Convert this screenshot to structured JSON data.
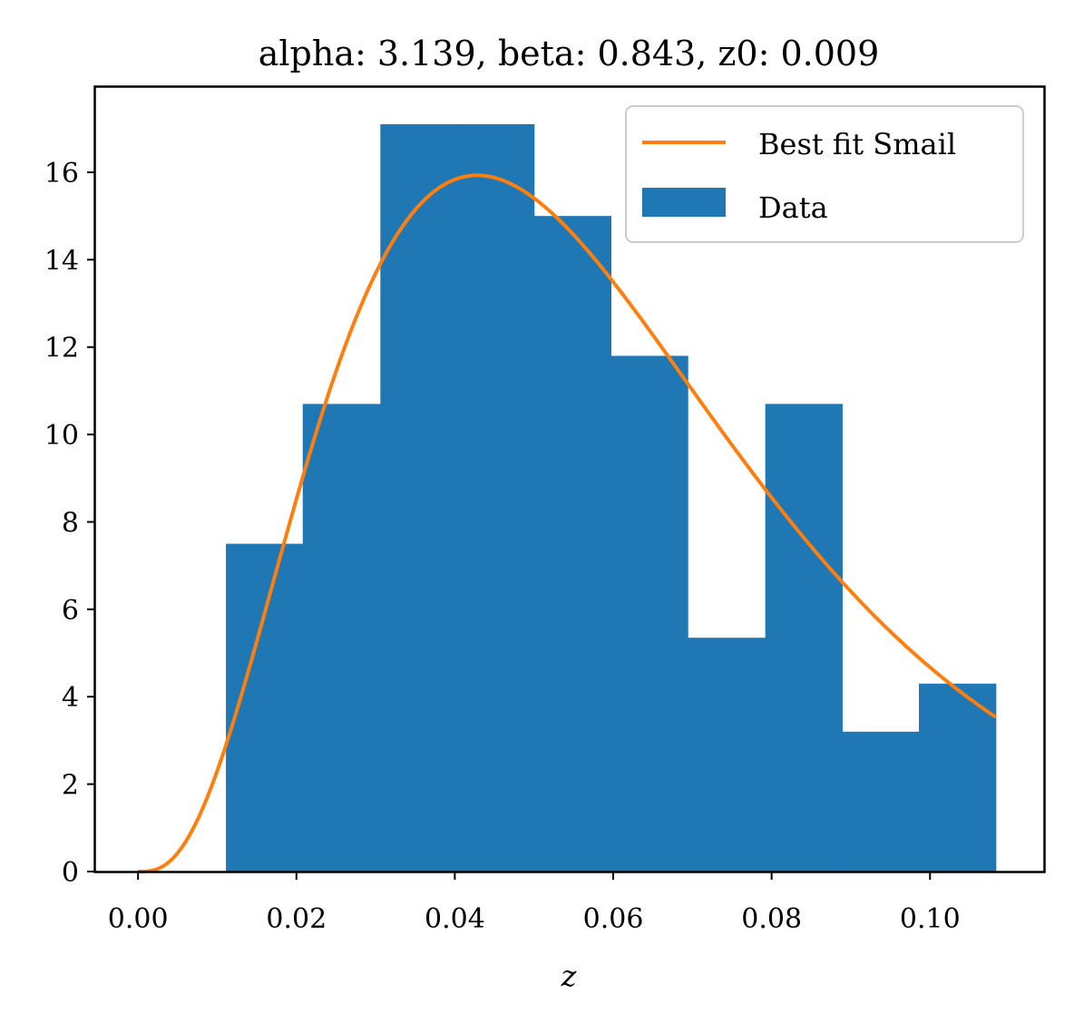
{
  "chart_data": {
    "type": "bar",
    "title": "alpha: 3.139, beta: 0.843, z0: 0.009",
    "xlabel": "z",
    "ylabel": "",
    "xlim": [
      -0.0054,
      0.1144
    ],
    "ylim": [
      0,
      17.95
    ],
    "x_ticks": [
      "0.00",
      "0.02",
      "0.04",
      "0.06",
      "0.08",
      "0.10"
    ],
    "x_tick_values": [
      0.0,
      0.02,
      0.04,
      0.06,
      0.08,
      0.1
    ],
    "y_ticks": [
      "0",
      "2",
      "4",
      "6",
      "8",
      "10",
      "12",
      "14",
      "16"
    ],
    "y_tick_values": [
      0,
      2,
      4,
      6,
      8,
      10,
      12,
      14,
      16
    ],
    "grid": false,
    "legend_position": "top-right",
    "histogram": {
      "name": "Data",
      "color": "#1f77b4",
      "bin_edges": [
        0.0111,
        0.0208,
        0.0306,
        0.0403,
        0.05,
        0.0597,
        0.0694,
        0.0792,
        0.0889,
        0.0986,
        0.1083
      ],
      "values": [
        7.5,
        10.7,
        17.1,
        17.1,
        15.0,
        11.8,
        5.35,
        10.7,
        3.2,
        4.3
      ]
    },
    "curve": {
      "name": "Best fit Smail",
      "color": "#ff7f0e",
      "alpha": 3.139,
      "beta": 0.843,
      "z0": 0.009,
      "peak": 15.93,
      "x_range": [
        0.0,
        0.1083
      ]
    },
    "legend": [
      {
        "label": "Best fit Smail",
        "kind": "line",
        "color": "#ff7f0e"
      },
      {
        "label": "Data",
        "kind": "patch",
        "color": "#1f77b4"
      }
    ]
  }
}
